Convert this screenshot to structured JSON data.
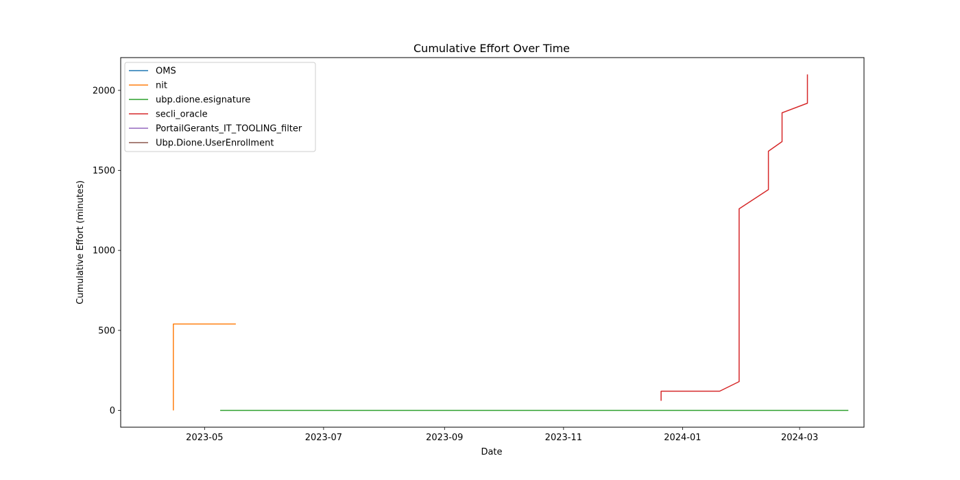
{
  "chart_data": {
    "type": "line",
    "title": "Cumulative Effort Over Time",
    "xlabel": "Date",
    "ylabel": "Cumulative Effort (minutes)",
    "x_axis_type": "date",
    "xlim": [
      "2023-03-19",
      "2024-04-03"
    ],
    "ylim": [
      -105,
      2205
    ],
    "x_ticks": [
      "2023-05-01",
      "2023-07-01",
      "2023-09-01",
      "2023-11-01",
      "2024-01-01",
      "2024-03-01"
    ],
    "x_tick_labels": [
      "2023-05",
      "2023-07",
      "2023-09",
      "2023-11",
      "2024-01",
      "2024-03"
    ],
    "y_ticks": [
      0,
      500,
      1000,
      1500,
      2000
    ],
    "y_tick_labels": [
      "0",
      "500",
      "1000",
      "1500",
      "2000"
    ],
    "grid": false,
    "legend_position": "top-left",
    "series": [
      {
        "name": "OMS",
        "color": "#1f77b4",
        "points": []
      },
      {
        "name": "nit",
        "color": "#ff7f0e",
        "points": [
          [
            "2023-04-15",
            0
          ],
          [
            "2023-04-15",
            540
          ],
          [
            "2023-05-17",
            540
          ]
        ]
      },
      {
        "name": "ubp.dione.esignature",
        "color": "#2ca02c",
        "points": [
          [
            "2023-05-09",
            0
          ],
          [
            "2024-03-26",
            0
          ]
        ]
      },
      {
        "name": "secli_oracle",
        "color": "#d62728",
        "points": [
          [
            "2023-12-21",
            60
          ],
          [
            "2023-12-21",
            120
          ],
          [
            "2024-01-20",
            120
          ],
          [
            "2024-01-30",
            180
          ],
          [
            "2024-01-30",
            1260
          ],
          [
            "2024-02-14",
            1380
          ],
          [
            "2024-02-14",
            1620
          ],
          [
            "2024-02-21",
            1680
          ],
          [
            "2024-02-21",
            1860
          ],
          [
            "2024-03-05",
            1920
          ],
          [
            "2024-03-05",
            2100
          ]
        ]
      },
      {
        "name": "PortailGerants_IT_TOOLING_filter",
        "color": "#9467bd",
        "points": []
      },
      {
        "name": "Ubp.Dione.UserEnrollment",
        "color": "#8c564b",
        "points": []
      }
    ]
  }
}
